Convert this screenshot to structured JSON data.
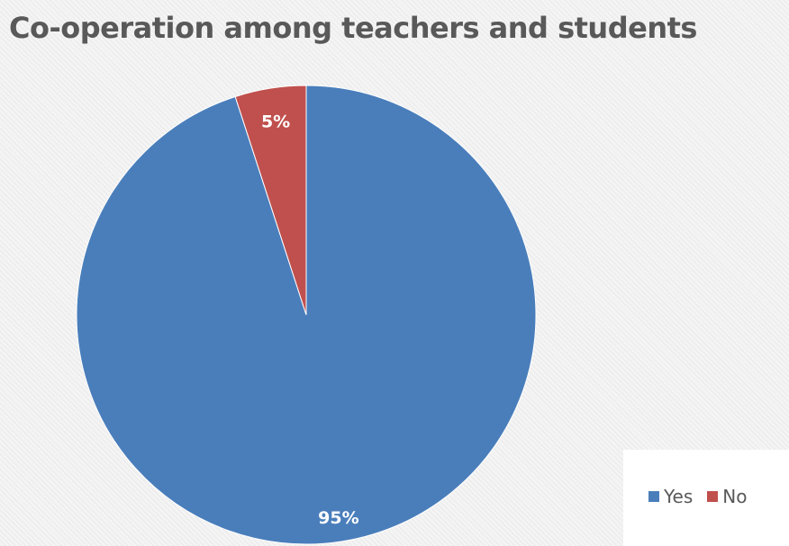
{
  "chart_data": {
    "type": "pie",
    "title": "Co-operation among teachers and students",
    "categories": [
      "Yes",
      "No"
    ],
    "values": [
      95,
      5
    ],
    "data_labels": [
      "95%",
      "5%"
    ],
    "colors": [
      "#4a7ebb",
      "#c0504d"
    ],
    "legend": "bottom-right"
  }
}
